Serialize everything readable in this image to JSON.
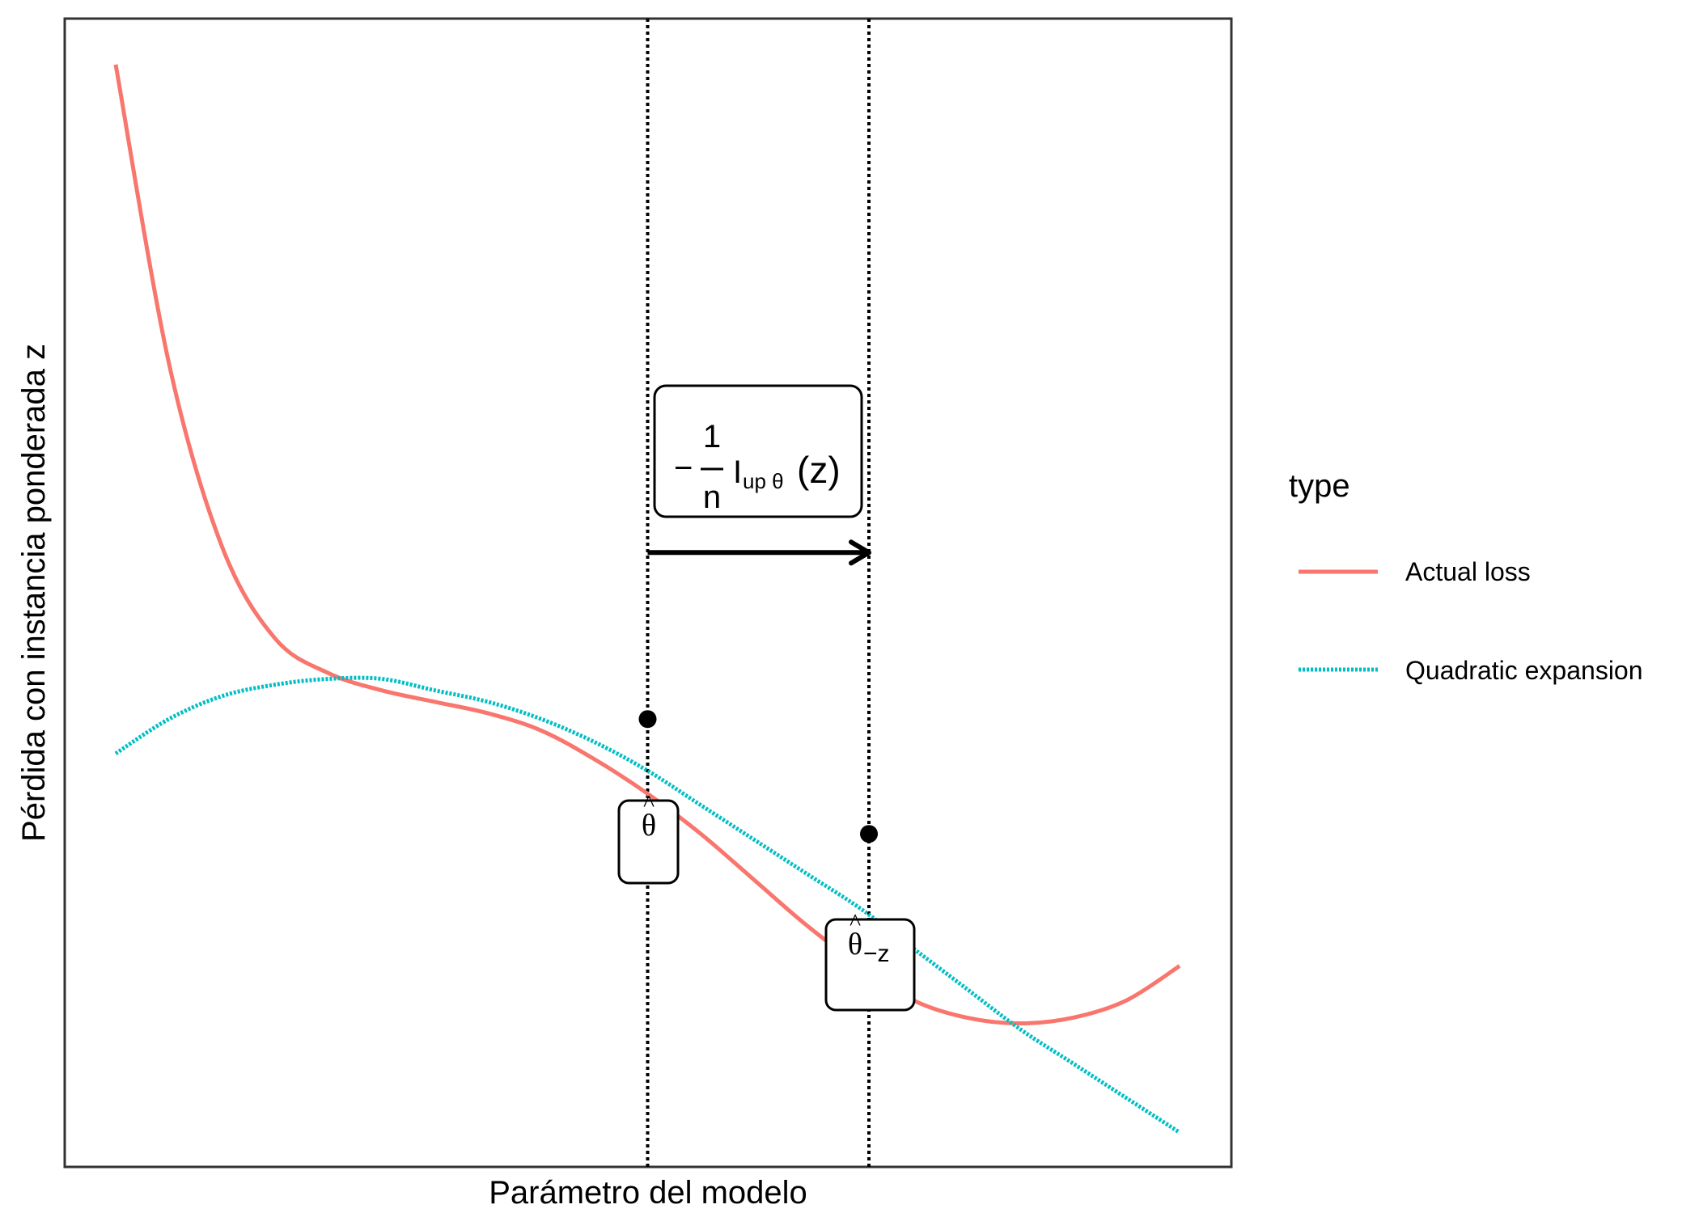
{
  "chart_data": {
    "type": "line",
    "xlabel": "Parámetro del modelo",
    "ylabel": "Pérdida con instancia ponderada z",
    "xlim": [
      0,
      1
    ],
    "ylim": [
      0,
      1
    ],
    "grid": false,
    "legend": {
      "title": "type",
      "position": "right",
      "entries": [
        {
          "label": "Actual loss",
          "color": "#F8766D",
          "style": "solid"
        },
        {
          "label": "Quadratic expansion",
          "color": "#00BFC4",
          "style": "dotted"
        }
      ]
    },
    "series": [
      {
        "name": "Actual loss",
        "color": "#F8766D",
        "style": "solid",
        "x": [
          0.0,
          0.05,
          0.1,
          0.15,
          0.2,
          0.25,
          0.3,
          0.35,
          0.4,
          0.45,
          0.5,
          0.55,
          0.6,
          0.65,
          0.7,
          0.75,
          0.8,
          0.85,
          0.9,
          0.95,
          1.0
        ],
        "y": [
          0.96,
          0.7,
          0.54,
          0.46,
          0.43,
          0.415,
          0.405,
          0.395,
          0.38,
          0.355,
          0.325,
          0.29,
          0.25,
          0.21,
          0.175,
          0.145,
          0.13,
          0.125,
          0.13,
          0.145,
          0.175
        ]
      },
      {
        "name": "Quadratic expansion",
        "color": "#00BFC4",
        "style": "dotted",
        "x": [
          0.0,
          0.05,
          0.1,
          0.15,
          0.2,
          0.25,
          0.3,
          0.35,
          0.4,
          0.45,
          0.5,
          0.55,
          0.6,
          0.65,
          0.7,
          0.75,
          0.8,
          0.85,
          0.9,
          0.95,
          1.0
        ],
        "y": [
          0.36,
          0.39,
          0.41,
          0.42,
          0.425,
          0.425,
          0.415,
          0.405,
          0.39,
          0.37,
          0.345,
          0.315,
          0.285,
          0.255,
          0.225,
          0.19,
          0.155,
          0.12,
          0.09,
          0.06,
          0.03
        ]
      }
    ],
    "points": [
      {
        "x": 0.5,
        "y": 0.39
      },
      {
        "x": 0.708,
        "y": 0.29
      }
    ],
    "vlines": [
      {
        "x": 0.5,
        "style": "dotted"
      },
      {
        "x": 0.708,
        "style": "dotted"
      }
    ],
    "arrow": {
      "x_from": 0.5,
      "x_to": 0.708,
      "y": 0.535
    },
    "annotations": {
      "influence": {
        "minus": "−",
        "numerator": "1",
        "denominator": "n",
        "base": "I",
        "subscript": "up θ",
        "argument": "(z)"
      },
      "theta_hat": {
        "symbol": "θ",
        "hat": "^"
      },
      "theta_hat_minus_z": {
        "symbol": "θ",
        "hat": "^",
        "subscript": "−z"
      }
    }
  }
}
